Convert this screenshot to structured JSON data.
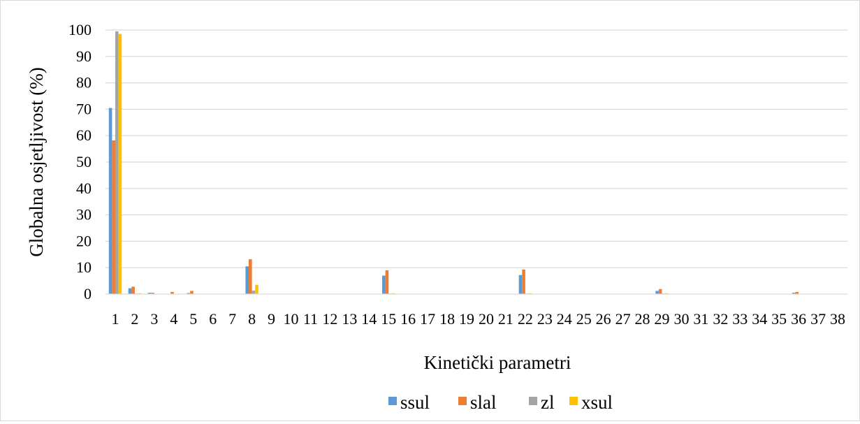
{
  "chart_data": {
    "type": "bar",
    "title": "",
    "xlabel": "Kinetički parametri",
    "ylabel": "Globalna osjetljivost (%)",
    "ylim": [
      0,
      100
    ],
    "yticks": [
      0,
      10,
      20,
      30,
      40,
      50,
      60,
      70,
      80,
      90,
      100
    ],
    "grid": "horizontal",
    "legend_position": "bottom",
    "categories": [
      "1",
      "2",
      "3",
      "4",
      "5",
      "6",
      "7",
      "8",
      "9",
      "10",
      "11",
      "12",
      "13",
      "14",
      "15",
      "16",
      "17",
      "18",
      "19",
      "20",
      "21",
      "22",
      "23",
      "24",
      "25",
      "26",
      "27",
      "28",
      "29",
      "30",
      "31",
      "32",
      "33",
      "34",
      "35",
      "36",
      "37",
      "38"
    ],
    "series": [
      {
        "name": "ssul",
        "color": "#5b9bd5",
        "values": [
          70.5,
          2.2,
          0.5,
          0,
          0.4,
          0,
          0,
          10.5,
          0,
          0,
          0,
          0,
          0,
          0,
          7,
          0,
          0,
          0,
          0,
          0,
          0,
          7.2,
          0,
          0,
          0,
          0,
          0,
          0,
          1.2,
          0,
          0,
          0,
          0,
          0,
          0,
          0.5,
          0,
          0
        ]
      },
      {
        "name": "slal",
        "color": "#ed7d31",
        "values": [
          58.2,
          2.8,
          0.5,
          0.8,
          1.2,
          0,
          0,
          13.2,
          0,
          0,
          0,
          0,
          0,
          0,
          9,
          0,
          0,
          0,
          0,
          0,
          0,
          9.3,
          0,
          0,
          0,
          0,
          0,
          0,
          1.9,
          0,
          0,
          0,
          0,
          0,
          0,
          0.8,
          0,
          0
        ]
      },
      {
        "name": "zl",
        "color": "#a5a5a5",
        "values": [
          99.5,
          0.2,
          0,
          0,
          0,
          0,
          0,
          1.3,
          0,
          0,
          0,
          0,
          0,
          0,
          0.2,
          0,
          0,
          0,
          0,
          0,
          0,
          0.2,
          0,
          0,
          0,
          0,
          0,
          0,
          0.2,
          0,
          0,
          0,
          0,
          0,
          0,
          0,
          0,
          0
        ]
      },
      {
        "name": "xsul",
        "color": "#ffc000",
        "values": [
          98.5,
          0.3,
          0,
          0,
          0,
          0,
          0,
          3.5,
          0,
          0,
          0,
          0,
          0,
          0,
          0.3,
          0,
          0,
          0,
          0,
          0,
          0,
          0.3,
          0,
          0,
          0,
          0,
          0,
          0,
          0.3,
          0,
          0,
          0,
          0,
          0,
          0,
          0,
          0,
          0
        ]
      }
    ]
  }
}
